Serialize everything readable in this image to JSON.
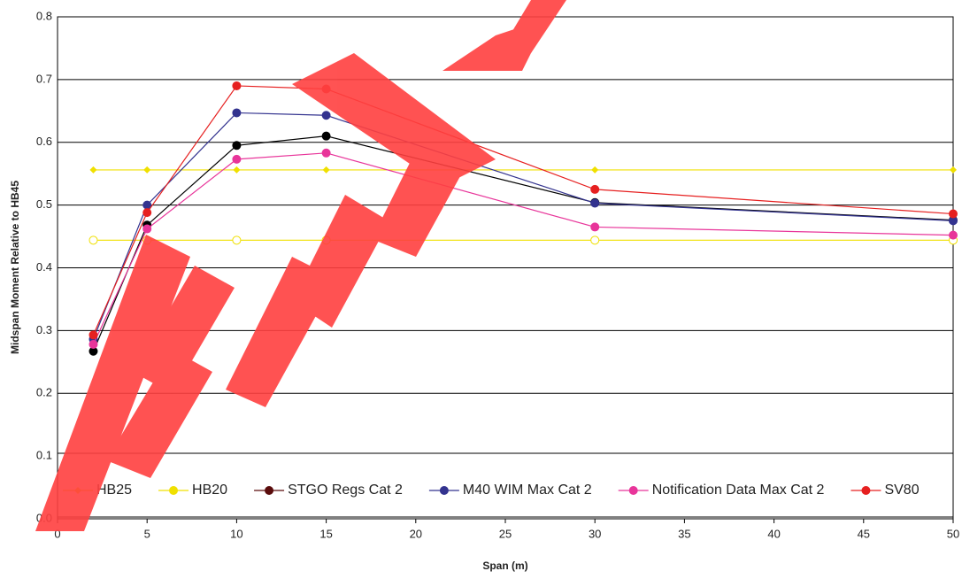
{
  "chart_data": {
    "type": "line",
    "x_label": "Span (m)",
    "y_label": "Midspan Moment Relative to HB45",
    "xlim": [
      0,
      50
    ],
    "xticks": [
      0,
      5,
      10,
      15,
      20,
      25,
      30,
      35,
      40,
      45,
      50
    ],
    "ylim": [
      0,
      0.8
    ],
    "yticks": [
      {
        "value": 0,
        "label": "0.0"
      },
      0.1,
      0.2,
      0.3,
      0.4,
      0.5,
      0.6,
      0.7,
      0.8
    ],
    "grid": true,
    "legend": "bottom",
    "series": [
      {
        "name": "HB25",
        "color": "#f0e000",
        "marker": "diamond",
        "x": [
          2,
          5,
          10,
          15,
          30,
          50
        ],
        "values": [
          0.556,
          0.556,
          0.556,
          0.556,
          0.556,
          0.556
        ]
      },
      {
        "name": "HB20",
        "color": "#f0e000",
        "marker": "circle",
        "hollow": true,
        "x": [
          2,
          5,
          10,
          15,
          30,
          50
        ],
        "values": [
          0.444,
          0.444,
          0.444,
          0.444,
          0.444,
          0.444
        ]
      },
      {
        "name": "STGO Regs Cat 2",
        "color": "#000000",
        "legend_color": "#5a0c0c",
        "marker": "circle",
        "x": [
          2,
          5,
          10,
          15,
          30,
          50
        ],
        "values": [
          0.267,
          0.468,
          0.595,
          0.61,
          0.504,
          0.476
        ]
      },
      {
        "name": "M40 WIM Max Cat 2",
        "color": "#33338f",
        "marker": "circle",
        "x": [
          2,
          5,
          10,
          15,
          30,
          50
        ],
        "values": [
          0.286,
          0.5,
          0.647,
          0.643,
          0.503,
          0.475
        ]
      },
      {
        "name": "Notification Data Max Cat 2",
        "color": "#e8359a",
        "marker": "circle",
        "x": [
          2,
          5,
          10,
          15,
          30,
          50
        ],
        "values": [
          0.278,
          0.462,
          0.573,
          0.583,
          0.465,
          0.452
        ]
      },
      {
        "name": "SV80",
        "color": "#e62020",
        "marker": "circle",
        "x": [
          2,
          5,
          10,
          15,
          30,
          50
        ],
        "values": [
          0.293,
          0.488,
          0.69,
          0.685,
          0.525,
          0.486
        ]
      }
    ]
  }
}
